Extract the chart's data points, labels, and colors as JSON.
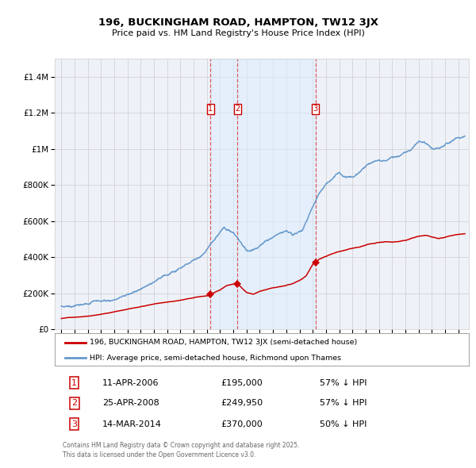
{
  "title": "196, BUCKINGHAM ROAD, HAMPTON, TW12 3JX",
  "subtitle": "Price paid vs. HM Land Registry's House Price Index (HPI)",
  "legend_red": "196, BUCKINGHAM ROAD, HAMPTON, TW12 3JX (semi-detached house)",
  "legend_blue": "HPI: Average price, semi-detached house, Richmond upon Thames",
  "transactions": [
    {
      "num": "1",
      "date": "11-APR-2006",
      "year": 2006.28,
      "price": 195000,
      "hpi_pct": "57% ↓ HPI"
    },
    {
      "num": "2",
      "date": "25-APR-2008",
      "year": 2008.32,
      "price": 249950,
      "hpi_pct": "57% ↓ HPI"
    },
    {
      "num": "3",
      "date": "14-MAR-2014",
      "year": 2014.2,
      "price": 370000,
      "hpi_pct": "50% ↓ HPI"
    }
  ],
  "footer": "Contains HM Land Registry data © Crown copyright and database right 2025.\nThis data is licensed under the Open Government Licence v3.0.",
  "red_color": "#cc0000",
  "blue_color": "#6699cc",
  "blue_fill": "#ddeeff",
  "vline_color": "#dd4444",
  "grid_color": "#cccccc",
  "bg_color": "#ffffff",
  "plot_bg": "#eef2f8",
  "ylim": [
    0,
    1500000
  ],
  "yticks": [
    0,
    200000,
    400000,
    600000,
    800000,
    1000000,
    1200000,
    1400000
  ],
  "xmin": 1994.5,
  "xmax": 2025.8
}
